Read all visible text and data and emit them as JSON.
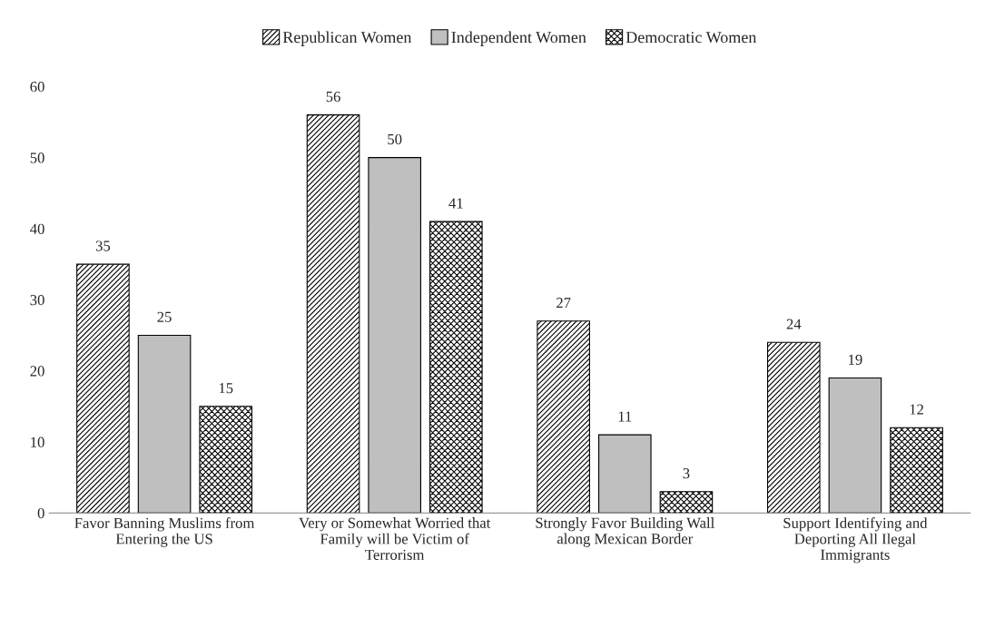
{
  "chart_data": {
    "type": "bar",
    "categories": [
      "Favor Banning Muslims from Entering the US",
      "Very or Somewhat Worried that Family will be Victim of Terrorism",
      "Strongly Favor Building Wall along Mexican Border",
      "Support Identifying and Deporting All Ilegal Immigrants"
    ],
    "series": [
      {
        "name": "Republican Women",
        "color": "#000000",
        "values": [
          35,
          56,
          27,
          24
        ]
      },
      {
        "name": "Independent Women",
        "color": "#bfbfbf",
        "values": [
          25,
          50,
          11,
          19
        ]
      },
      {
        "name": "Democratic Women",
        "color": "#000000",
        "values": [
          15,
          41,
          3,
          12
        ]
      }
    ],
    "ylim": [
      0,
      60
    ],
    "yticks": [
      0,
      10,
      20,
      30,
      40,
      50,
      60
    ],
    "data_labels": true,
    "grid": false,
    "legend": "top"
  }
}
